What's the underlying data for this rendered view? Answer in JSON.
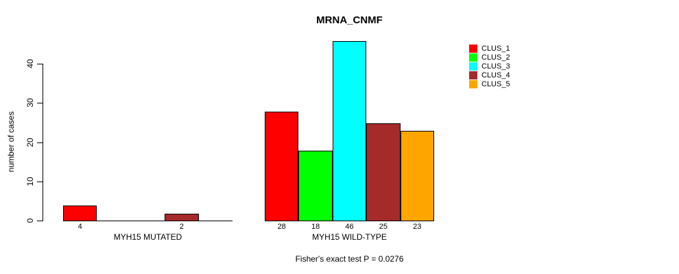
{
  "chart_data": {
    "type": "bar",
    "title": "MRNA_CNMF",
    "ylabel": "number of cases",
    "xlabel": "",
    "ylim": [
      0,
      46
    ],
    "yticks": [
      0,
      10,
      20,
      30,
      40
    ],
    "grid": false,
    "legend_position": "top-right",
    "background": "#ffffff",
    "axis_color": "#000000",
    "categories": [
      "MYH15 MUTATED",
      "MYH15 WILD-TYPE"
    ],
    "series": [
      {
        "name": "CLUS_1",
        "color": "#ff0000",
        "values": [
          4,
          28
        ]
      },
      {
        "name": "CLUS_2",
        "color": "#00ff00",
        "values": [
          0,
          18
        ]
      },
      {
        "name": "CLUS_3",
        "color": "#00ffff",
        "values": [
          0,
          46
        ]
      },
      {
        "name": "CLUS_4",
        "color": "#a52a2a",
        "values": [
          2,
          25
        ]
      },
      {
        "name": "CLUS_5",
        "color": "#ffa500",
        "values": [
          0,
          23
        ]
      }
    ],
    "bar_value_labels": {
      "shown": true,
      "hide_zero": true
    },
    "annotation": "Fisher's exact test P = 0.0276"
  }
}
